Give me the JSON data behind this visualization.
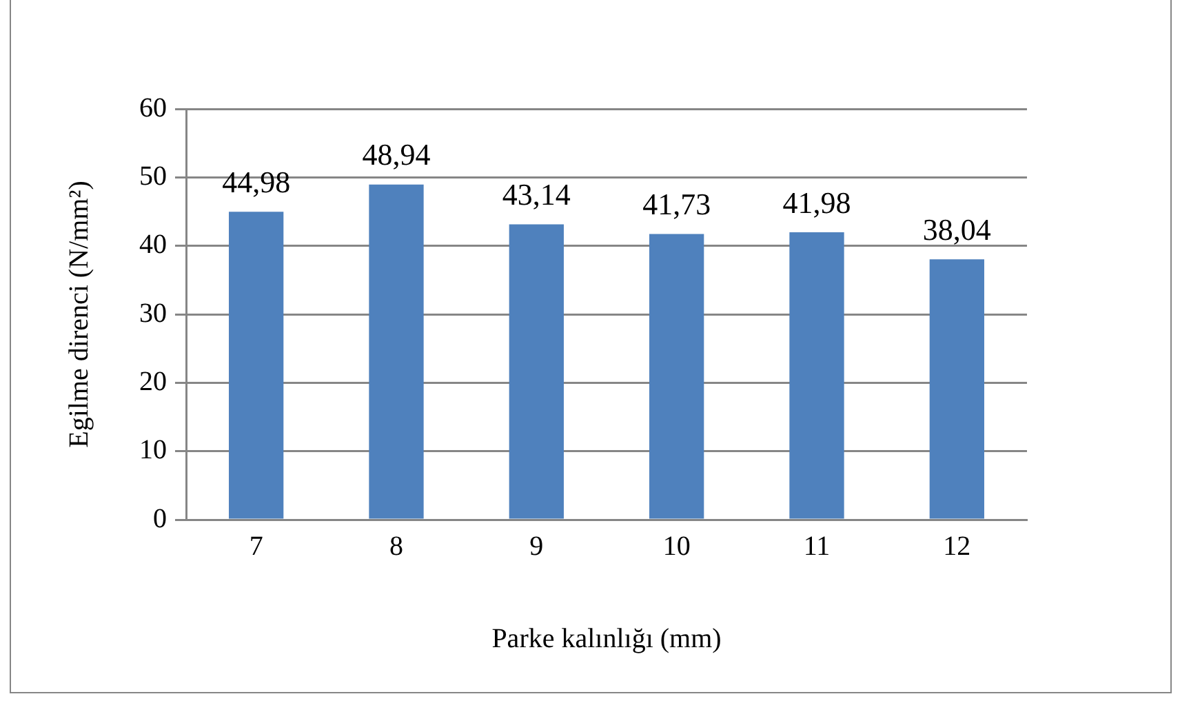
{
  "chart_data": {
    "type": "bar",
    "xlabel": "Parke kalınlığı (mm)",
    "ylabel": "Egilme direnci (N/mm²)",
    "categories": [
      "7",
      "8",
      "9",
      "10",
      "11",
      "12"
    ],
    "values": [
      44.98,
      48.94,
      43.14,
      41.73,
      41.98,
      38.04
    ],
    "value_labels": [
      "44,98",
      "48,94",
      "43,14",
      "41,73",
      "41,98",
      "38,04"
    ],
    "color": "#4f81bd",
    "ylim": [
      0,
      60
    ],
    "yticks": [
      0,
      10,
      20,
      30,
      40,
      50,
      60
    ],
    "grid": "y"
  }
}
